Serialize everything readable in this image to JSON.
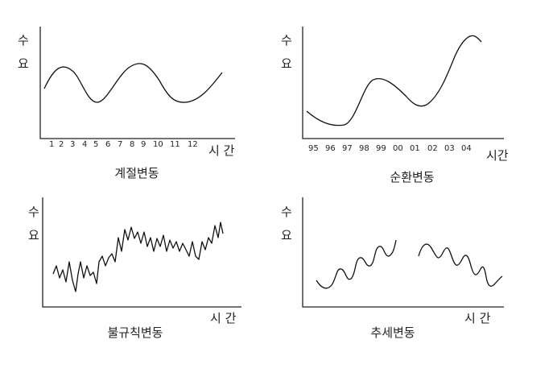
{
  "panels": [
    {
      "caption": "계절변동",
      "ylabel_top": "수",
      "ylabel_bottom": "요",
      "xlabel": "시 간",
      "ticks": [
        "1",
        "2",
        "3",
        "4",
        "5",
        "6",
        "7",
        "8",
        "9",
        "10",
        "11",
        "12"
      ]
    },
    {
      "caption": "순환변동",
      "ylabel_top": "수",
      "ylabel_bottom": "요",
      "xlabel": "시간",
      "ticks": [
        "95",
        "96",
        "97",
        "98",
        "99",
        "00",
        "01",
        "02",
        "03",
        "04"
      ]
    },
    {
      "caption": "불규칙변동",
      "ylabel_top": "수",
      "ylabel_bottom": "요",
      "xlabel": "시 간",
      "ticks": []
    },
    {
      "caption": "추세변동",
      "ylabel_top": "수",
      "ylabel_bottom": "요",
      "xlabel": "시 간",
      "ticks": []
    }
  ]
}
